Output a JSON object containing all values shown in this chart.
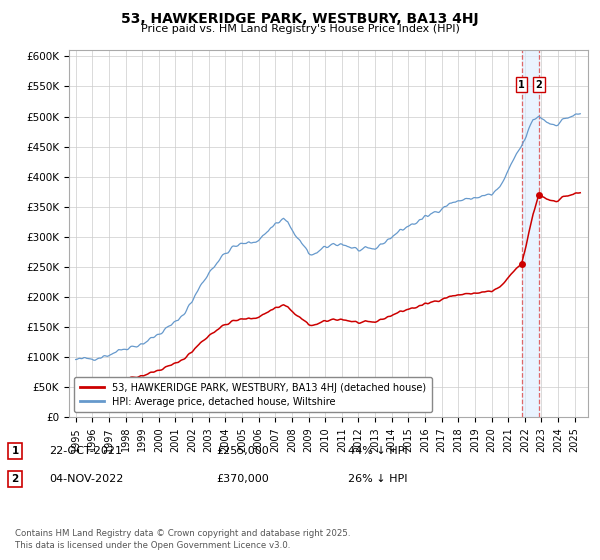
{
  "title": "53, HAWKERIDGE PARK, WESTBURY, BA13 4HJ",
  "subtitle": "Price paid vs. HM Land Registry's House Price Index (HPI)",
  "ytick_values": [
    0,
    50000,
    100000,
    150000,
    200000,
    250000,
    300000,
    350000,
    400000,
    450000,
    500000,
    550000,
    600000
  ],
  "ylabel_ticks": [
    "£0",
    "£50K",
    "£100K",
    "£150K",
    "£200K",
    "£250K",
    "£300K",
    "£350K",
    "£400K",
    "£450K",
    "£500K",
    "£550K",
    "£600K"
  ],
  "xlim": [
    1994.6,
    2025.8
  ],
  "ylim": [
    0,
    610000
  ],
  "legend1_label": "53, HAWKERIDGE PARK, WESTBURY, BA13 4HJ (detached house)",
  "legend2_label": "HPI: Average price, detached house, Wiltshire",
  "annotation1_num": "1",
  "annotation1_date": "22-OCT-2021",
  "annotation1_price": "£255,000",
  "annotation1_hpi": "44% ↓ HPI",
  "annotation2_num": "2",
  "annotation2_date": "04-NOV-2022",
  "annotation2_price": "£370,000",
  "annotation2_hpi": "26% ↓ HPI",
  "footer": "Contains HM Land Registry data © Crown copyright and database right 2025.\nThis data is licensed under the Open Government Licence v3.0.",
  "sale1_x": 2021.805,
  "sale1_y": 255000,
  "sale2_x": 2022.838,
  "sale2_y": 370000,
  "line1_color": "#cc0000",
  "line2_color": "#6699cc",
  "vline_color": "#dd4444",
  "span_color": "#ddeeff",
  "bg_color": "#ffffff",
  "grid_color": "#cccccc"
}
